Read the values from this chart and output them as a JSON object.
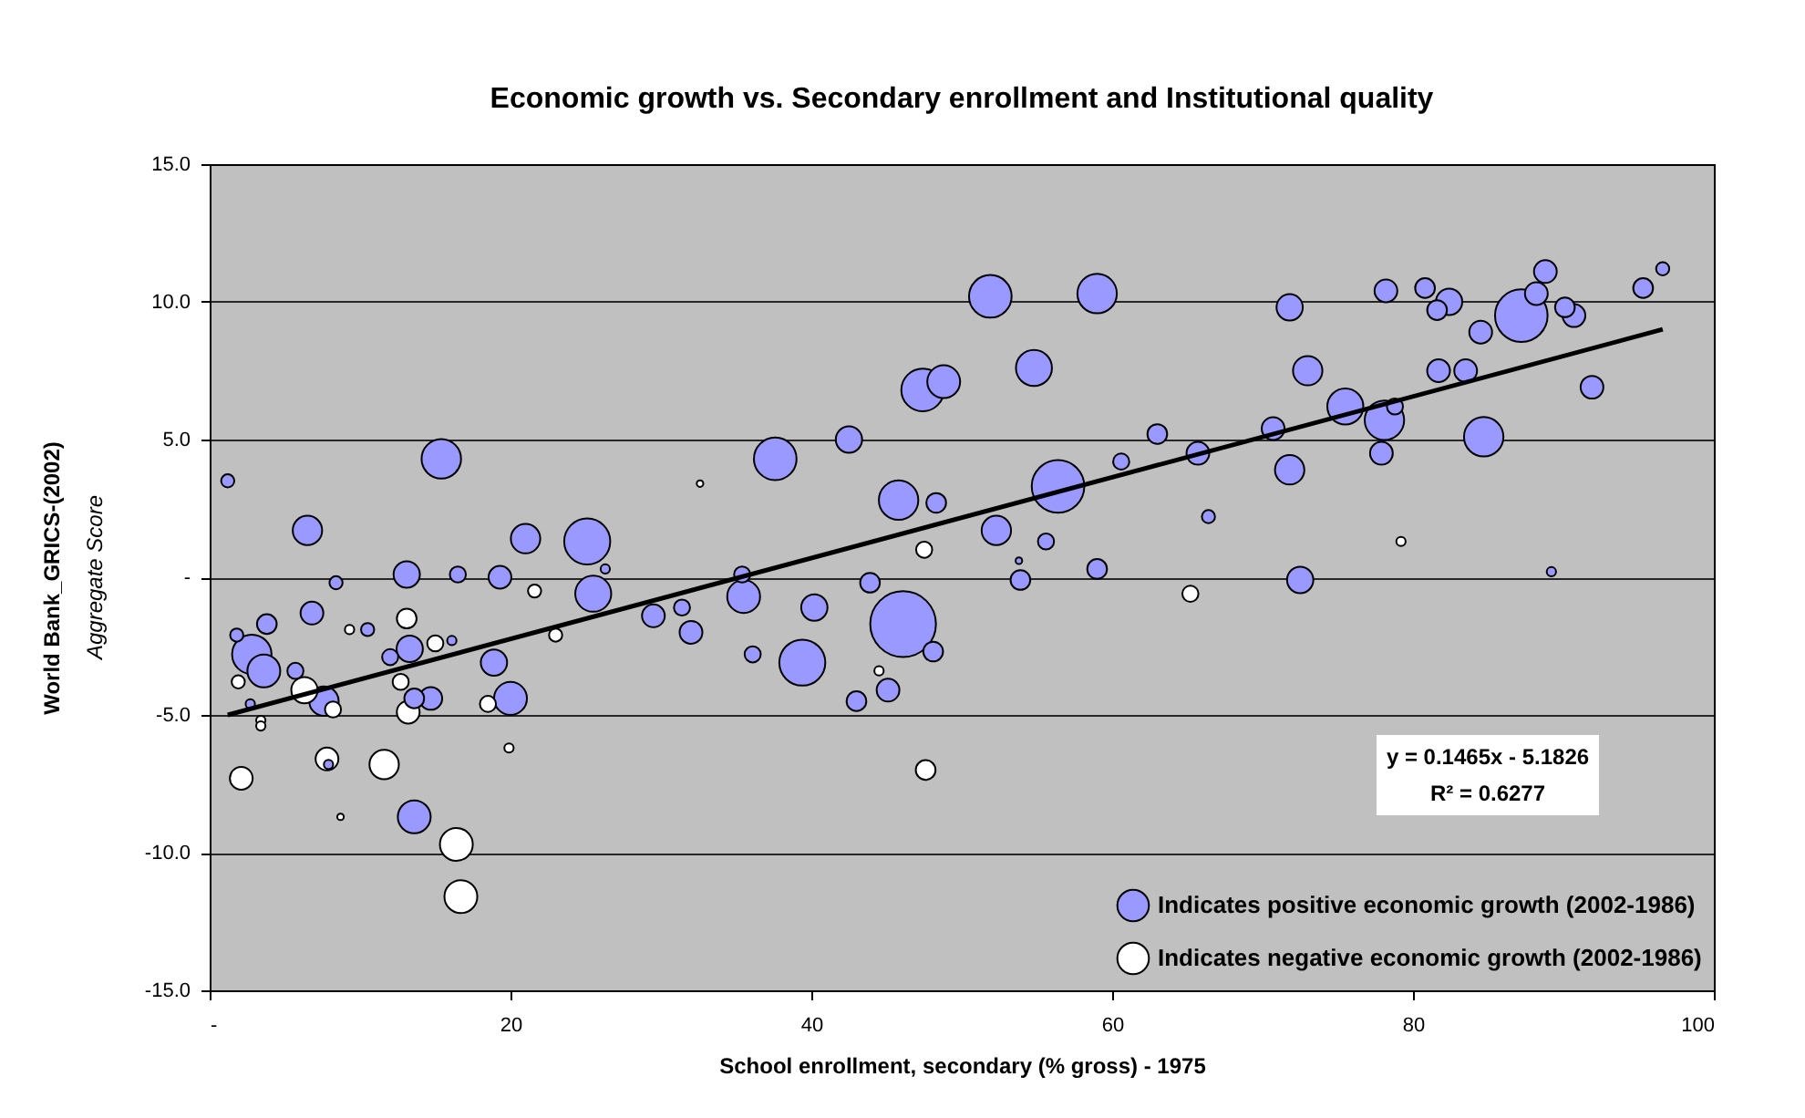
{
  "chart_data": {
    "type": "bubble",
    "title": "Economic growth vs. Secondary enrollment and Institutional quality",
    "xlabel": "School enrollment, secondary (% gross) - 1975",
    "ylabel": "World Bank_GRICS-(2002)",
    "annotations": [
      "y = 0.1465x - 5.1826",
      "R² = 0.6277",
      "Aggregate Score"
    ],
    "xlim": [
      0,
      100
    ],
    "ylim": [
      -15,
      15
    ],
    "xticks": [
      {
        "value": 0,
        "label": "-"
      },
      20,
      40,
      60,
      80,
      100
    ],
    "yticks": [
      {
        "value": -15,
        "label": "-15.0"
      },
      {
        "value": -10,
        "label": "-10.0"
      },
      {
        "value": -5,
        "label": "-5.0"
      },
      {
        "value": 0,
        "label": "-"
      },
      {
        "value": 5,
        "label": "5.0"
      },
      {
        "value": 10,
        "label": "10.0"
      },
      {
        "value": 15,
        "label": "15.0"
      }
    ],
    "grid": "y",
    "legend": "bottom right",
    "series": [
      {
        "name": "Indicates positive economic growth (2002-1986)",
        "color": "#9999ff",
        "marker": "circle",
        "x": [
          1.2,
          15.4,
          6.5,
          21.0,
          25.1,
          26.3,
          37.6,
          42.5,
          45.8,
          13.1,
          16.5,
          19.3,
          8.4,
          51.9,
          59.0,
          47.4,
          48.8,
          54.8,
          48.3,
          56.4,
          52.3,
          55.6,
          60.6,
          63.0,
          65.7,
          66.4,
          53.8,
          59.0,
          53.9,
          71.8,
          73.0,
          70.7,
          71.8,
          75.5,
          78.1,
          78.8,
          77.9,
          72.5,
          78.2,
          80.8,
          81.6,
          82.4,
          84.5,
          81.7,
          83.5,
          84.7,
          87.2,
          88.2,
          88.8,
          90.1,
          90.7,
          91.9,
          89.2,
          95.3,
          96.6,
          46.1,
          48.1,
          45.1,
          25.5,
          35.4,
          35.5,
          29.5,
          31.4,
          32.0,
          36.1,
          40.2,
          39.4,
          43.9,
          43.0,
          6.8,
          10.5,
          16.1,
          13.3,
          12.0,
          13.6,
          14.7,
          18.9,
          20.0,
          3.8,
          1.8,
          2.8,
          3.6,
          5.7,
          2.7,
          7.6,
          7.9,
          13.6
        ],
        "values": [
          3.5,
          4.3,
          1.7,
          1.4,
          1.3,
          0.3,
          4.3,
          5.0,
          2.8,
          0.1,
          0.1,
          0.0,
          -0.2,
          10.2,
          10.3,
          6.8,
          7.1,
          7.6,
          2.7,
          3.3,
          1.7,
          1.3,
          4.2,
          5.2,
          4.5,
          2.2,
          0.6,
          0.3,
          -0.1,
          9.8,
          7.5,
          5.4,
          3.9,
          6.2,
          5.7,
          6.2,
          4.5,
          -0.1,
          10.4,
          10.5,
          9.7,
          10.0,
          8.9,
          7.5,
          7.5,
          5.1,
          9.5,
          10.3,
          11.1,
          9.8,
          9.5,
          6.9,
          0.2,
          10.5,
          11.2,
          -1.7,
          -2.7,
          -4.1,
          -0.6,
          0.1,
          -0.7,
          -1.4,
          -1.1,
          -2.0,
          -2.8,
          -1.1,
          -3.1,
          -0.2,
          -4.5,
          -1.3,
          -1.9,
          -2.3,
          -2.6,
          -2.9,
          -4.4,
          -4.4,
          -3.1,
          -4.4,
          -1.7,
          -2.1,
          -2.8,
          -3.4,
          -3.4,
          -4.6,
          -4.5,
          -6.8,
          -8.7
        ],
        "sizes": [
          0.04,
          0.36,
          0.2,
          0.2,
          0.49,
          0.02,
          0.42,
          0.16,
          0.36,
          0.16,
          0.06,
          0.12,
          0.04,
          0.42,
          0.36,
          0.42,
          0.25,
          0.3,
          0.09,
          0.64,
          0.2,
          0.06,
          0.06,
          0.09,
          0.12,
          0.04,
          0.01,
          0.09,
          0.09,
          0.16,
          0.2,
          0.12,
          0.2,
          0.3,
          0.36,
          0.06,
          0.12,
          0.16,
          0.12,
          0.09,
          0.09,
          0.16,
          0.12,
          0.12,
          0.12,
          0.36,
          0.64,
          0.12,
          0.12,
          0.09,
          0.12,
          0.12,
          0.02,
          0.09,
          0.04,
          1,
          0.09,
          0.12,
          0.3,
          0.06,
          0.25,
          0.12,
          0.06,
          0.12,
          0.06,
          0.16,
          0.49,
          0.09,
          0.09,
          0.12,
          0.04,
          0.02,
          0.16,
          0.06,
          0.09,
          0.12,
          0.16,
          0.25,
          0.09,
          0.04,
          0.36,
          0.25,
          0.06,
          0.02,
          0.2,
          0.02,
          0.25
        ]
      },
      {
        "name": "Indicates negative economic growth (2002-1986)",
        "color": "#ffffff",
        "marker": "circle",
        "x": [
          32.6,
          47.5,
          79.2,
          44.5,
          65.2,
          47.6,
          21.6,
          9.3,
          13.1,
          15.0,
          12.7,
          13.2,
          18.5,
          23.0,
          19.9,
          1.9,
          3.4,
          3.4,
          6.3,
          8.2,
          7.8,
          2.1,
          11.6,
          8.7,
          16.4,
          16.7
        ],
        "values": [
          3.4,
          1.0,
          1.3,
          -3.4,
          -0.6,
          -7.0,
          -0.5,
          -1.9,
          -1.5,
          -2.4,
          -3.8,
          -4.9,
          -4.6,
          -2.1,
          -6.2,
          -3.8,
          -5.2,
          -5.4,
          -4.1,
          -4.8,
          -6.6,
          -7.3,
          -6.8,
          -8.7,
          -9.7,
          -11.6
        ],
        "sizes": [
          0.01,
          0.06,
          0.02,
          0.02,
          0.06,
          0.09,
          0.04,
          0.02,
          0.09,
          0.06,
          0.06,
          0.12,
          0.06,
          0.04,
          0.02,
          0.04,
          0.02,
          0.02,
          0.16,
          0.06,
          0.12,
          0.12,
          0.2,
          0.01,
          0.25,
          0.25
        ]
      },
      {
        "type": "line",
        "color": "#000000",
        "line_style": "solid",
        "marker": "none",
        "x": [
          1.2,
          96.6
        ],
        "values": [
          -5.0,
          9.0
        ]
      }
    ]
  }
}
